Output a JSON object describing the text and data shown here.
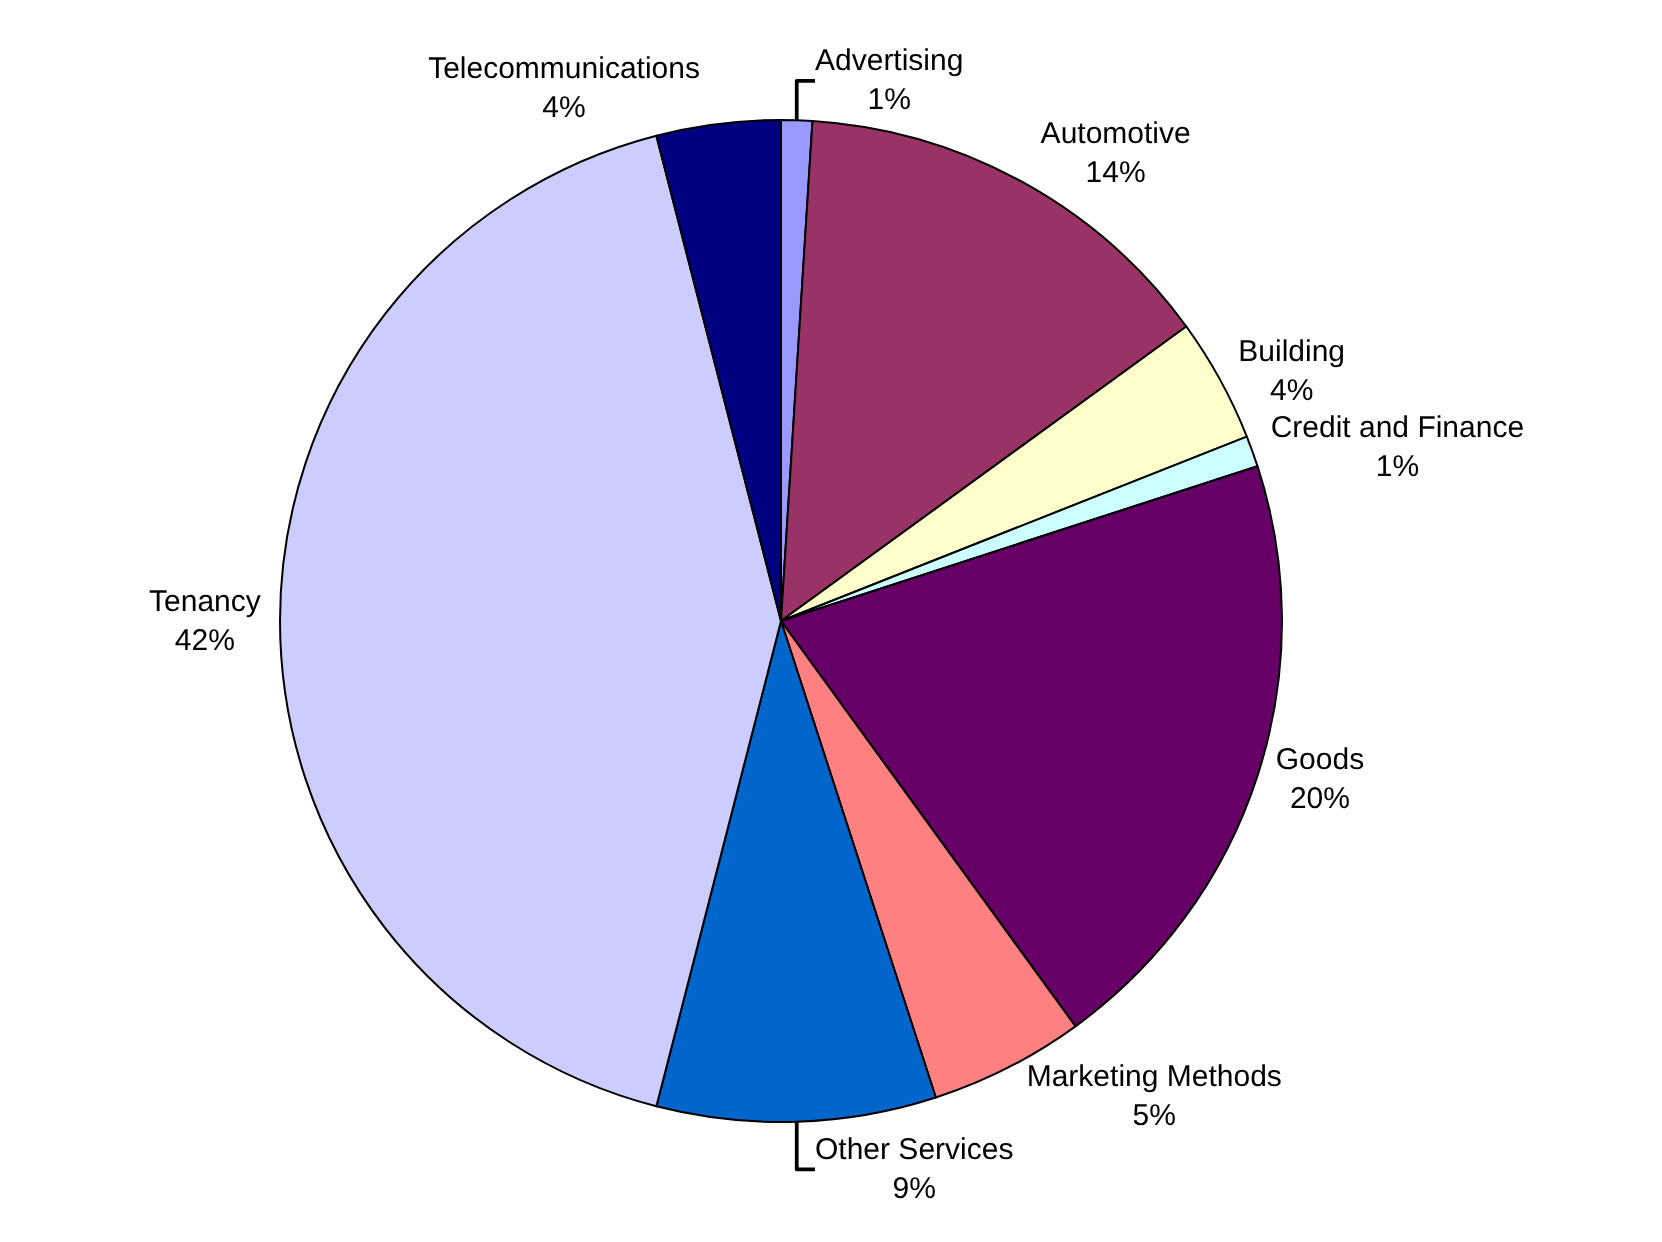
{
  "chart_data": {
    "type": "pie",
    "categories": [
      "Advertising",
      "Automotive",
      "Building",
      "Credit and Finance",
      "Goods",
      "Marketing Methods",
      "Other Services",
      "Tenancy",
      "Telecommunications"
    ],
    "values": [
      1,
      14,
      4,
      1,
      20,
      5,
      9,
      42,
      4
    ],
    "value_labels": [
      "1%",
      "14%",
      "4%",
      "1%",
      "20%",
      "5%",
      "9%",
      "42%",
      "4%"
    ],
    "colors": [
      "#9999ff",
      "#993366",
      "#ffffcc",
      "#ccffff",
      "#660066",
      "#ff8080",
      "#0066cc",
      "#ccccff",
      "#000080"
    ],
    "legend": false
  }
}
